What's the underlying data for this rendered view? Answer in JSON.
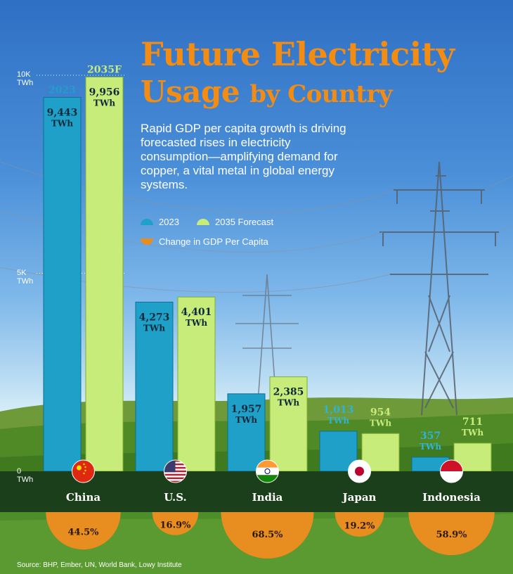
{
  "title_line1": "Future Electricity",
  "title_line2_main": "Usage",
  "title_line2_small": "by Country",
  "subtitle": "Rapid GDP per capita growth is driving forecasted rises in electricity consumption—amplifying demand for copper, a vital metal in global energy systems.",
  "legend": {
    "s2023": "2023",
    "s2035": "2035 Forecast",
    "gdp": "Change in GDP Per Capita"
  },
  "source": "Source: BHP, Ember, UN, World Bank, Lowy Institute",
  "y_axis": {
    "top_value": "10K",
    "mid_value": "5K",
    "zero_value": "0",
    "unit": "TWh"
  },
  "column_headers": {
    "s2023": "2023",
    "s2035": "2035F"
  },
  "colors": {
    "bar2023": "#1fa0c8",
    "bar2035": "#c8ec7a",
    "gdp": "#e88d1f",
    "title": "#f28c13",
    "band": "#173a1a"
  },
  "chart_data": {
    "type": "bar",
    "title": "Future Electricity Usage by Country",
    "ylabel": "TWh",
    "ylim": [
      0,
      10000
    ],
    "categories": [
      "China",
      "U.S.",
      "India",
      "Japan",
      "Indonesia"
    ],
    "series": [
      {
        "name": "2023",
        "values": [
          9443,
          4273,
          1957,
          1013,
          357
        ],
        "labels": [
          "9,443",
          "4,273",
          "1,957",
          "1,013",
          "357"
        ]
      },
      {
        "name": "2035 Forecast",
        "values": [
          9956,
          4401,
          2385,
          954,
          711
        ],
        "labels": [
          "9,956",
          "4,401",
          "2,385",
          "954",
          "711"
        ]
      }
    ],
    "gdp_change": {
      "name": "Change in GDP Per Capita",
      "values": [
        44.5,
        16.9,
        68.5,
        19.2,
        58.9
      ],
      "labels": [
        "44.5%",
        "16.9%",
        "68.5%",
        "19.2%",
        "58.9%"
      ]
    },
    "value_unit": "TWh",
    "flags": [
      "china-flag",
      "us-flag",
      "india-flag",
      "japan-flag",
      "indonesia-flag"
    ]
  }
}
